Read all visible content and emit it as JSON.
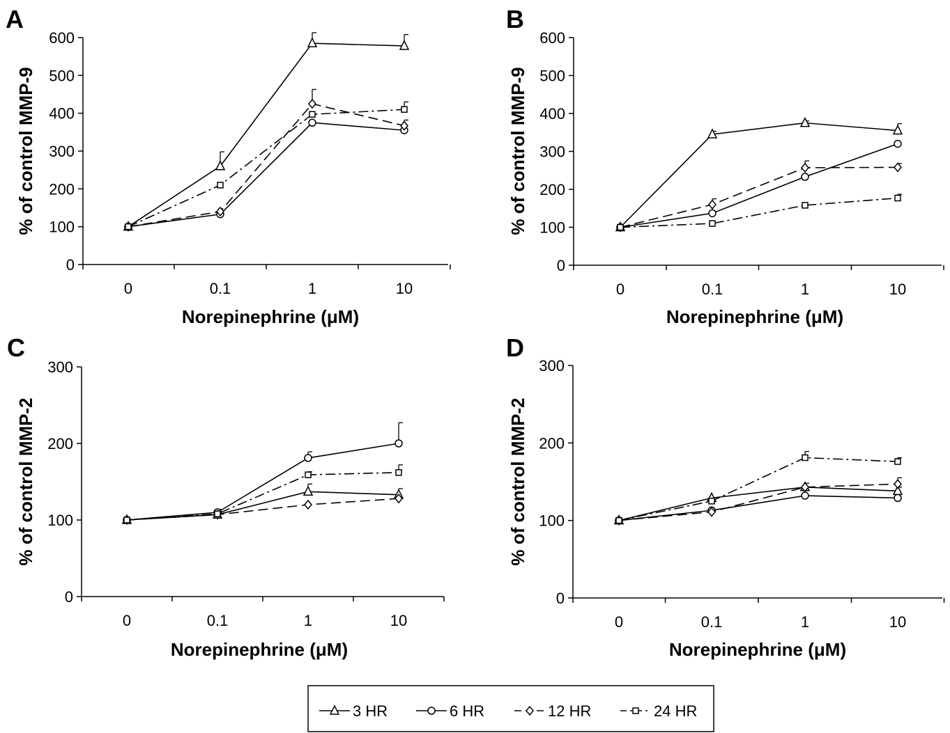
{
  "legend": {
    "items": [
      {
        "label": "3 HR",
        "marker": "triangle",
        "dash": "solid"
      },
      {
        "label": "6 HR",
        "marker": "circle",
        "dash": "solid"
      },
      {
        "label": "12 HR",
        "marker": "diamond",
        "dash": "dashed"
      },
      {
        "label": "24 HR",
        "marker": "square",
        "dash": "dashdot"
      }
    ]
  },
  "chart_data": [
    {
      "panel": "A",
      "type": "line",
      "xlabel": "Norepinephrine (μM)",
      "ylabel": "% of control MMP-9",
      "categories": [
        "0",
        "0.1",
        "1",
        "10"
      ],
      "ylim": [
        0,
        600
      ],
      "yticks": [
        0,
        100,
        200,
        300,
        400,
        500,
        600
      ],
      "series": [
        {
          "name": "3 HR",
          "values": [
            100,
            260,
            585,
            578
          ],
          "errors": [
            0,
            38,
            28,
            30
          ]
        },
        {
          "name": "6 HR",
          "values": [
            100,
            133,
            375,
            355
          ],
          "errors": [
            0,
            0,
            0,
            0
          ]
        },
        {
          "name": "12 HR",
          "values": [
            100,
            140,
            425,
            367
          ],
          "errors": [
            0,
            0,
            38,
            15
          ]
        },
        {
          "name": "24 HR",
          "values": [
            100,
            210,
            397,
            410
          ],
          "errors": [
            0,
            0,
            0,
            20
          ]
        }
      ]
    },
    {
      "panel": "B",
      "type": "line",
      "xlabel": "Norepinephrine (μM)",
      "ylabel": "% of control MMP-9",
      "categories": [
        "0",
        "0.1",
        "1",
        "10"
      ],
      "ylim": [
        0,
        600
      ],
      "yticks": [
        0,
        100,
        200,
        300,
        400,
        500,
        600
      ],
      "series": [
        {
          "name": "3 HR",
          "values": [
            100,
            345,
            375,
            355
          ],
          "errors": [
            0,
            8,
            5,
            18
          ]
        },
        {
          "name": "6 HR",
          "values": [
            100,
            137,
            233,
            320
          ],
          "errors": [
            0,
            0,
            0,
            0
          ]
        },
        {
          "name": "12 HR",
          "values": [
            100,
            160,
            257,
            258
          ],
          "errors": [
            0,
            15,
            18,
            10
          ]
        },
        {
          "name": "24 HR",
          "values": [
            100,
            110,
            158,
            177
          ],
          "errors": [
            0,
            0,
            0,
            10
          ]
        }
      ]
    },
    {
      "panel": "C",
      "type": "line",
      "xlabel": "Norepinephrine (μM)",
      "ylabel": "% of control MMP-2",
      "categories": [
        "0",
        "0.1",
        "1",
        "10"
      ],
      "ylim": [
        0,
        300
      ],
      "yticks": [
        0,
        100,
        200,
        300
      ],
      "series": [
        {
          "name": "3 HR",
          "values": [
            100,
            107,
            137,
            133
          ],
          "errors": [
            0,
            0,
            10,
            8
          ]
        },
        {
          "name": "6 HR",
          "values": [
            100,
            110,
            181,
            200
          ],
          "errors": [
            0,
            4,
            8,
            27
          ]
        },
        {
          "name": "12 HR",
          "values": [
            100,
            107,
            120,
            128
          ],
          "errors": [
            0,
            0,
            0,
            0
          ]
        },
        {
          "name": "24 HR",
          "values": [
            100,
            108,
            159,
            162
          ],
          "errors": [
            0,
            0,
            4,
            10
          ]
        }
      ]
    },
    {
      "panel": "D",
      "type": "line",
      "xlabel": "Norepinephrine (μM)",
      "ylabel": "% of control MMP-2",
      "categories": [
        "0",
        "0.1",
        "1",
        "10"
      ],
      "ylim": [
        0,
        300
      ],
      "yticks": [
        0,
        100,
        200,
        300
      ],
      "series": [
        {
          "name": "3 HR",
          "values": [
            100,
            129,
            143,
            138
          ],
          "errors": [
            0,
            0,
            5,
            5
          ]
        },
        {
          "name": "6 HR",
          "values": [
            100,
            113,
            132,
            129
          ],
          "errors": [
            0,
            0,
            0,
            0
          ]
        },
        {
          "name": "12 HR",
          "values": [
            100,
            111,
            143,
            147
          ],
          "errors": [
            0,
            0,
            0,
            8
          ]
        },
        {
          "name": "24 HR",
          "values": [
            100,
            125,
            181,
            176
          ],
          "errors": [
            0,
            0,
            8,
            5
          ]
        }
      ]
    }
  ]
}
